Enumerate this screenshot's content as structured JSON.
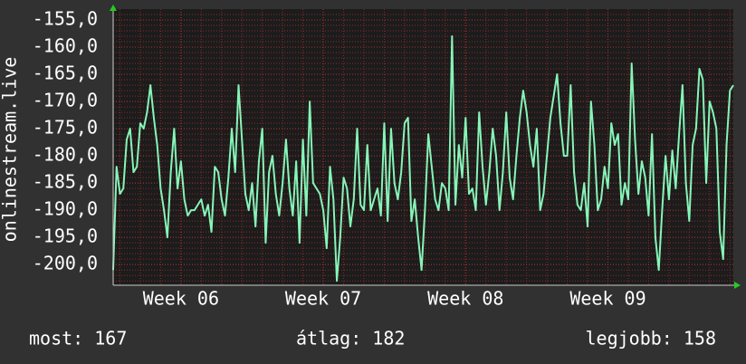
{
  "chart_data": {
    "type": "line",
    "y_label": "onlinestream.live",
    "footer": [
      "most: 167",
      "átlag: 182",
      "legjobb: 158"
    ],
    "color": "#86f5b8",
    "grid": true,
    "xlim": [
      0,
      183
    ],
    "xticks": [
      {
        "value": 20,
        "label": "Week 06"
      },
      {
        "value": 62,
        "label": "Week 07"
      },
      {
        "value": 104,
        "label": "Week 08"
      },
      {
        "value": 146,
        "label": "Week 09"
      }
    ],
    "ylim": [
      -203.8,
      -153
    ],
    "yticks": [
      {
        "value": -155,
        "label": "-155,0"
      },
      {
        "value": -160,
        "label": "-160,0"
      },
      {
        "value": -165,
        "label": "-165,0"
      },
      {
        "value": -170,
        "label": "-170,0"
      },
      {
        "value": -175,
        "label": "-175,0"
      },
      {
        "value": -180,
        "label": "-180,0"
      },
      {
        "value": -185,
        "label": "-185,0"
      },
      {
        "value": -190,
        "label": "-190,0"
      },
      {
        "value": -195,
        "label": "-195,0"
      },
      {
        "value": -200,
        "label": "-200,0"
      }
    ],
    "values": [
      -201,
      -182,
      -187,
      -186,
      -177,
      -175,
      -183,
      -182,
      -174,
      -175,
      -172,
      -167,
      -173,
      -178,
      -186,
      -190,
      -195,
      -183,
      -175,
      -186,
      -181,
      -188,
      -191,
      -190,
      -190,
      -189,
      -188,
      -191,
      -189,
      -194,
      -182,
      -183,
      -188,
      -191,
      -184,
      -175,
      -183,
      -167,
      -177,
      -187,
      -190,
      -185,
      -193,
      -181,
      -175,
      -196,
      -183,
      -180,
      -187,
      -191,
      -185,
      -177,
      -186,
      -191,
      -181,
      -196,
      -177,
      -191,
      -170,
      -185,
      -186,
      -187,
      -190,
      -197,
      -182,
      -188,
      -203,
      -195,
      -184,
      -186,
      -193,
      -188,
      -175,
      -189,
      -190,
      -178,
      -190,
      -188,
      -186,
      -191,
      -174,
      -192,
      -175,
      -185,
      -188,
      -183,
      -174,
      -173,
      -192,
      -188,
      -195,
      -201,
      -190,
      -176,
      -182,
      -188,
      -190,
      -185,
      -186,
      -190,
      -158,
      -189,
      -178,
      -184,
      -173,
      -187,
      -186,
      -190,
      -172,
      -182,
      -189,
      -183,
      -175,
      -180,
      -190,
      -183,
      -172,
      -184,
      -188,
      -180,
      -173,
      -168,
      -172,
      -178,
      -182,
      -175,
      -190,
      -187,
      -180,
      -173,
      -169,
      -165,
      -174,
      -180,
      -180,
      -167,
      -183,
      -189,
      -190,
      -185,
      -193,
      -170,
      -178,
      -190,
      -188,
      -182,
      -186,
      -174,
      -178,
      -176,
      -189,
      -185,
      -188,
      -163,
      -177,
      -187,
      -181,
      -184,
      -191,
      -176,
      -195,
      -201,
      -190,
      -180,
      -188,
      -179,
      -186,
      -176,
      -167,
      -185,
      -192,
      -178,
      -175,
      -164,
      -166,
      -185,
      -170,
      -172,
      -175,
      -194,
      -199,
      -178,
      -168,
      -167
    ]
  }
}
